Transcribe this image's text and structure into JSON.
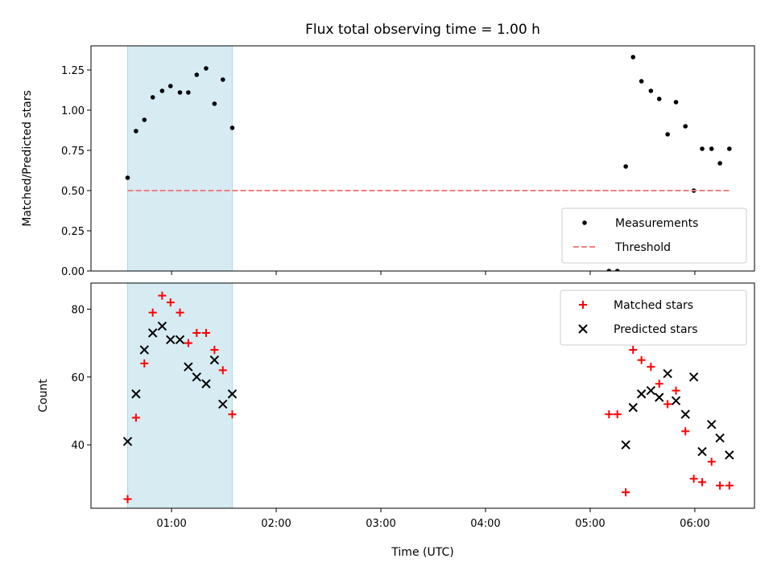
{
  "chart_data": {
    "type": "scatter",
    "title": "Flux total observing time = 1.00 h",
    "xlabel": "Time (UTC)",
    "x_unit": "hours UTC",
    "xlim": [
      0.23,
      6.57
    ],
    "xticks": [
      {
        "value": 1,
        "label": "01:00"
      },
      {
        "value": 2,
        "label": "02:00"
      },
      {
        "value": 3,
        "label": "03:00"
      },
      {
        "value": 4,
        "label": "04:00"
      },
      {
        "value": 5,
        "label": "05:00"
      },
      {
        "value": 6,
        "label": "06:00"
      }
    ],
    "shaded_span": [
      0.58,
      1.58
    ],
    "shaded_color": "#add8e6",
    "panels": [
      {
        "name": "ratio",
        "ylabel": "Matched/Predicted stars",
        "ylim": [
          0,
          1.4
        ],
        "yticks": [
          {
            "value": 0,
            "label": "0.00"
          },
          {
            "value": 0.25,
            "label": "0.25"
          },
          {
            "value": 0.5,
            "label": "0.50"
          },
          {
            "value": 0.75,
            "label": "0.75"
          },
          {
            "value": 1.0,
            "label": "1.00"
          },
          {
            "value": 1.25,
            "label": "1.25"
          }
        ],
        "series": [
          {
            "name": "Measurements",
            "marker": "dot",
            "color": "#000000",
            "points": [
              [
                0.58,
                0.58
              ],
              [
                0.66,
                0.87
              ],
              [
                0.74,
                0.94
              ],
              [
                0.82,
                1.08
              ],
              [
                0.91,
                1.12
              ],
              [
                0.99,
                1.15
              ],
              [
                1.08,
                1.11
              ],
              [
                1.16,
                1.11
              ],
              [
                1.24,
                1.22
              ],
              [
                1.33,
                1.26
              ],
              [
                1.41,
                1.04
              ],
              [
                1.49,
                1.19
              ],
              [
                1.58,
                0.89
              ],
              [
                5.18,
                0.0
              ],
              [
                5.26,
                0.0
              ],
              [
                5.34,
                0.65
              ],
              [
                5.41,
                1.33
              ],
              [
                5.49,
                1.18
              ],
              [
                5.58,
                1.12
              ],
              [
                5.66,
                1.07
              ],
              [
                5.74,
                0.85
              ],
              [
                5.82,
                1.05
              ],
              [
                5.91,
                0.9
              ],
              [
                5.99,
                0.5
              ],
              [
                6.07,
                0.76
              ],
              [
                6.16,
                0.76
              ],
              [
                6.24,
                0.67
              ],
              [
                6.33,
                0.76
              ]
            ]
          },
          {
            "name": "Threshold",
            "marker": "dashed-line",
            "color": "#f08080",
            "points": [
              [
                0.58,
                0.5
              ],
              [
                6.33,
                0.5
              ]
            ]
          }
        ],
        "legend": {
          "position": "lower-right",
          "entries": [
            {
              "label": "Measurements",
              "icon": "dot"
            },
            {
              "label": "Threshold",
              "icon": "dashed-line"
            }
          ]
        }
      },
      {
        "name": "count",
        "ylabel": "Count",
        "ylim": [
          21.3,
          87.7
        ],
        "yticks": [
          {
            "value": 40,
            "label": "40"
          },
          {
            "value": 60,
            "label": "60"
          },
          {
            "value": 80,
            "label": "80"
          }
        ],
        "series": [
          {
            "name": "Matched stars",
            "marker": "plus",
            "color": "#ff0000",
            "points": [
              [
                0.58,
                24
              ],
              [
                0.66,
                48
              ],
              [
                0.74,
                64
              ],
              [
                0.82,
                79
              ],
              [
                0.91,
                84
              ],
              [
                0.99,
                82
              ],
              [
                1.08,
                79
              ],
              [
                1.16,
                70
              ],
              [
                1.24,
                73
              ],
              [
                1.33,
                73
              ],
              [
                1.41,
                68
              ],
              [
                1.49,
                62
              ],
              [
                1.58,
                49
              ],
              [
                5.18,
                49
              ],
              [
                5.26,
                49
              ],
              [
                5.34,
                26
              ],
              [
                5.41,
                68
              ],
              [
                5.49,
                65
              ],
              [
                5.58,
                63
              ],
              [
                5.66,
                58
              ],
              [
                5.74,
                52
              ],
              [
                5.82,
                56
              ],
              [
                5.91,
                44
              ],
              [
                5.99,
                30
              ],
              [
                6.07,
                29
              ],
              [
                6.16,
                35
              ],
              [
                6.24,
                28
              ],
              [
                6.33,
                28
              ]
            ]
          },
          {
            "name": "Predicted stars",
            "marker": "x",
            "color": "#000000",
            "points": [
              [
                0.58,
                41
              ],
              [
                0.66,
                55
              ],
              [
                0.74,
                68
              ],
              [
                0.82,
                73
              ],
              [
                0.91,
                75
              ],
              [
                0.99,
                71
              ],
              [
                1.08,
                71
              ],
              [
                1.16,
                63
              ],
              [
                1.24,
                60
              ],
              [
                1.33,
                58
              ],
              [
                1.41,
                65
              ],
              [
                1.49,
                52
              ],
              [
                1.58,
                55
              ],
              [
                5.34,
                40
              ],
              [
                5.41,
                51
              ],
              [
                5.49,
                55
              ],
              [
                5.58,
                56
              ],
              [
                5.66,
                54
              ],
              [
                5.74,
                61
              ],
              [
                5.82,
                53
              ],
              [
                5.91,
                49
              ],
              [
                5.99,
                60
              ],
              [
                6.07,
                38
              ],
              [
                6.16,
                46
              ],
              [
                6.24,
                42
              ],
              [
                6.33,
                37
              ]
            ]
          }
        ],
        "legend": {
          "position": "upper-right",
          "entries": [
            {
              "label": "Matched stars",
              "icon": "plus"
            },
            {
              "label": "Predicted stars",
              "icon": "x"
            }
          ]
        }
      }
    ]
  }
}
